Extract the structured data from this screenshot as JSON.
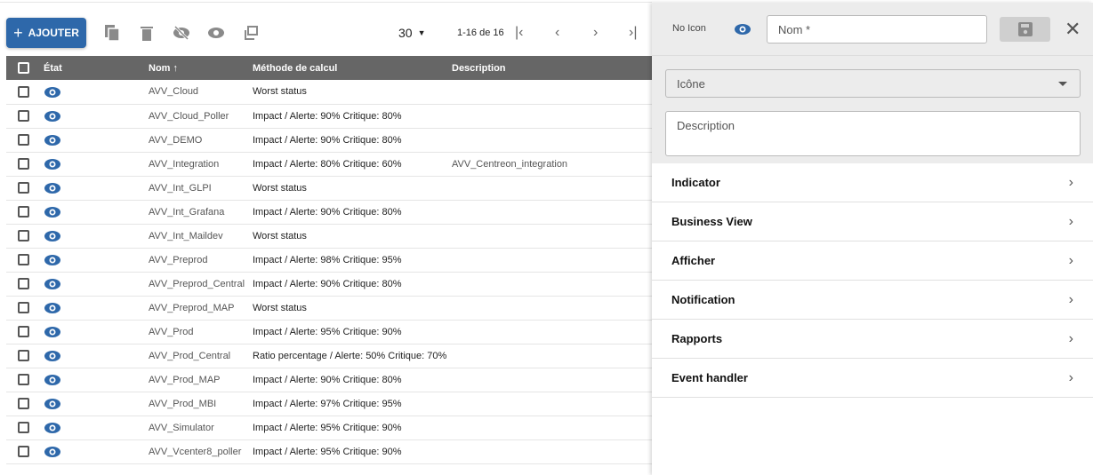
{
  "toolbar": {
    "add_label": "AJOUTER",
    "per_page": "30",
    "range": "1-16 de 16"
  },
  "table": {
    "headers": [
      "État",
      "Nom",
      "Méthode de calcul",
      "Description"
    ],
    "rows": [
      {
        "name": "AVV_Cloud",
        "method": "Worst status",
        "description": ""
      },
      {
        "name": "AVV_Cloud_Poller",
        "method": "Impact / Alerte: 90% Critique: 80%",
        "description": ""
      },
      {
        "name": "AVV_DEMO",
        "method": "Impact / Alerte: 90% Critique: 80%",
        "description": ""
      },
      {
        "name": "AVV_Integration",
        "method": "Impact / Alerte: 80% Critique: 60%",
        "description": "AVV_Centreon_integration"
      },
      {
        "name": "AVV_Int_GLPI",
        "method": "Worst status",
        "description": ""
      },
      {
        "name": "AVV_Int_Grafana",
        "method": "Impact / Alerte: 90% Critique: 80%",
        "description": ""
      },
      {
        "name": "AVV_Int_Maildev",
        "method": "Worst status",
        "description": ""
      },
      {
        "name": "AVV_Preprod",
        "method": "Impact / Alerte: 98% Critique: 95%",
        "description": ""
      },
      {
        "name": "AVV_Preprod_Central",
        "method": "Impact / Alerte: 90% Critique: 80%",
        "description": ""
      },
      {
        "name": "AVV_Preprod_MAP",
        "method": "Worst status",
        "description": ""
      },
      {
        "name": "AVV_Prod",
        "method": "Impact / Alerte: 95% Critique: 90%",
        "description": ""
      },
      {
        "name": "AVV_Prod_Central",
        "method": "Ratio percentage / Alerte: 50% Critique: 70%",
        "description": ""
      },
      {
        "name": "AVV_Prod_MAP",
        "method": "Impact / Alerte: 90% Critique: 80%",
        "description": ""
      },
      {
        "name": "AVV_Prod_MBI",
        "method": "Impact / Alerte: 97% Critique: 95%",
        "description": ""
      },
      {
        "name": "AVV_Simulator",
        "method": "Impact / Alerte: 95% Critique: 90%",
        "description": ""
      },
      {
        "name": "AVV_Vcenter8_poller",
        "method": "Impact / Alerte: 95% Critique: 90%",
        "description": ""
      }
    ]
  },
  "panel": {
    "no_icon": "No Icon",
    "name_placeholder": "Nom *",
    "icon_select": "Icône",
    "description_placeholder": "Description",
    "sections": [
      "Indicator",
      "Business View",
      "Afficher",
      "Notification",
      "Rapports",
      "Event handler"
    ]
  },
  "colors": {
    "accent": "#2e68aa",
    "header": "#666666"
  }
}
